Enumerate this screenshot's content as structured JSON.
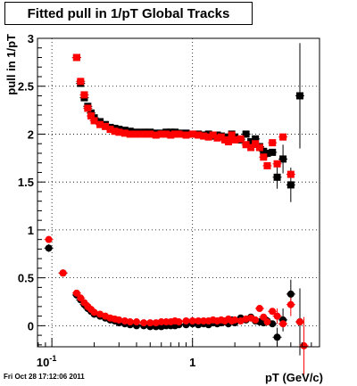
{
  "title": "Fitted pull in 1/pT  Global Tracks",
  "footer_timestamp": "Fri Oct 28 17:12:06 2011",
  "chart_data": {
    "type": "scatter",
    "title": "Fitted pull in 1/pT  Global Tracks",
    "xlabel": "pT (GeV/c)",
    "ylabel": "pull in 1/pT",
    "x_scale": "log",
    "xlim": [
      0.079,
      8.0
    ],
    "ylim": [
      -0.22,
      3.0
    ],
    "grid": true,
    "x_tick_labels": [
      {
        "x": 0.1,
        "label": "10",
        "sup": "-1"
      },
      {
        "x": 1,
        "label": "1",
        "sup": ""
      }
    ],
    "y_ticks": [
      0,
      0.5,
      1,
      1.5,
      2,
      2.5,
      3
    ],
    "y_tick_labels": [
      "0",
      "0.5",
      "1",
      "1.5",
      "2",
      "2.5",
      "3"
    ],
    "marker_colors": {
      "black": "#000000",
      "red": "#ff0000"
    },
    "series": [
      {
        "color": "black",
        "marker": "square",
        "points": [
          [
            0.15,
            2.8
          ],
          [
            0.16,
            2.53
          ],
          [
            0.17,
            2.38
          ],
          [
            0.18,
            2.29
          ],
          [
            0.19,
            2.22
          ],
          [
            0.2,
            2.17
          ],
          [
            0.22,
            2.13
          ],
          [
            0.24,
            2.1
          ],
          [
            0.26,
            2.07
          ],
          [
            0.28,
            2.06
          ],
          [
            0.3,
            2.05
          ],
          [
            0.33,
            2.04
          ],
          [
            0.36,
            2.03
          ],
          [
            0.4,
            2.02
          ],
          [
            0.45,
            2.02
          ],
          [
            0.5,
            2.02
          ],
          [
            0.55,
            2.01
          ],
          [
            0.6,
            2.01
          ],
          [
            0.65,
            2.02
          ],
          [
            0.7,
            2.02
          ],
          [
            0.75,
            2.02
          ],
          [
            0.8,
            2.01
          ],
          [
            0.9,
            2.01
          ],
          [
            1.0,
            2.0
          ],
          [
            1.1,
            2.0
          ],
          [
            1.2,
            1.99
          ],
          [
            1.3,
            2.0
          ],
          [
            1.4,
            1.98
          ],
          [
            1.5,
            1.99
          ],
          [
            1.6,
            1.98
          ],
          [
            1.7,
            1.96
          ],
          [
            1.8,
            1.97
          ],
          [
            1.9,
            2.0
          ],
          [
            2.0,
            1.97
          ],
          [
            2.2,
            1.94
          ],
          [
            2.4,
            2.0
          ],
          [
            2.6,
            1.92
          ],
          [
            2.8,
            1.95
          ],
          [
            3.0,
            1.87
          ],
          [
            3.2,
            1.82
          ],
          [
            3.4,
            1.8
          ],
          [
            3.7,
            1.81
          ],
          [
            4.0,
            1.55
          ],
          [
            4.4,
            1.74
          ],
          [
            5.0,
            1.47
          ],
          [
            5.8,
            2.4
          ]
        ],
        "errors": [
          [
            4.0,
            0.12
          ],
          [
            4.4,
            0.15
          ],
          [
            5.0,
            0.18
          ],
          [
            5.8,
            0.55
          ]
        ]
      },
      {
        "color": "red",
        "marker": "square",
        "points": [
          [
            0.15,
            2.8
          ],
          [
            0.16,
            2.55
          ],
          [
            0.17,
            2.41
          ],
          [
            0.18,
            2.27
          ],
          [
            0.19,
            2.19
          ],
          [
            0.2,
            2.14
          ],
          [
            0.22,
            2.1
          ],
          [
            0.24,
            2.08
          ],
          [
            0.26,
            2.05
          ],
          [
            0.28,
            2.03
          ],
          [
            0.3,
            2.02
          ],
          [
            0.33,
            2.01
          ],
          [
            0.36,
            2.0
          ],
          [
            0.4,
            2.0
          ],
          [
            0.45,
            2.0
          ],
          [
            0.5,
            2.0
          ],
          [
            0.55,
            1.99
          ],
          [
            0.6,
            2.0
          ],
          [
            0.65,
            2.0
          ],
          [
            0.7,
            1.99
          ],
          [
            0.75,
            2.0
          ],
          [
            0.8,
            2.0
          ],
          [
            0.9,
            1.99
          ],
          [
            1.0,
            2.0
          ],
          [
            1.1,
            1.99
          ],
          [
            1.2,
            1.98
          ],
          [
            1.3,
            1.97
          ],
          [
            1.4,
            1.99
          ],
          [
            1.5,
            1.96
          ],
          [
            1.6,
            1.97
          ],
          [
            1.7,
            1.94
          ],
          [
            1.8,
            1.92
          ],
          [
            1.9,
            1.99
          ],
          [
            2.0,
            1.94
          ],
          [
            2.2,
            1.95
          ],
          [
            2.4,
            1.89
          ],
          [
            2.6,
            1.86
          ],
          [
            2.8,
            1.9
          ],
          [
            3.0,
            1.86
          ],
          [
            3.2,
            1.76
          ],
          [
            3.4,
            1.67
          ],
          [
            3.7,
            1.91
          ],
          [
            4.0,
            1.69
          ],
          [
            4.4,
            1.97
          ],
          [
            5.0,
            1.58
          ]
        ],
        "errors": []
      },
      {
        "color": "black",
        "marker": "circle",
        "points": [
          [
            0.095,
            0.81
          ],
          [
            0.12,
            0.55
          ],
          [
            0.15,
            0.32
          ],
          [
            0.16,
            0.27
          ],
          [
            0.17,
            0.22
          ],
          [
            0.18,
            0.18
          ],
          [
            0.19,
            0.15
          ],
          [
            0.2,
            0.12
          ],
          [
            0.22,
            0.1
          ],
          [
            0.24,
            0.08
          ],
          [
            0.26,
            0.06
          ],
          [
            0.28,
            0.05
          ],
          [
            0.3,
            0.03
          ],
          [
            0.33,
            0.02
          ],
          [
            0.36,
            0.01
          ],
          [
            0.4,
            0.0
          ],
          [
            0.45,
            0.0
          ],
          [
            0.5,
            -0.01
          ],
          [
            0.55,
            -0.01
          ],
          [
            0.6,
            -0.01
          ],
          [
            0.65,
            0.0
          ],
          [
            0.7,
            0.0
          ],
          [
            0.75,
            0.0
          ],
          [
            0.8,
            0.01
          ],
          [
            0.9,
            0.01
          ],
          [
            1.0,
            0.02
          ],
          [
            1.1,
            0.01
          ],
          [
            1.2,
            0.02
          ],
          [
            1.3,
            0.01
          ],
          [
            1.4,
            0.03
          ],
          [
            1.5,
            0.02
          ],
          [
            1.6,
            0.03
          ],
          [
            1.7,
            0.04
          ],
          [
            1.8,
            0.02
          ],
          [
            1.9,
            0.06
          ],
          [
            2.0,
            0.03
          ],
          [
            2.2,
            0.08
          ],
          [
            2.4,
            0.06
          ],
          [
            2.6,
            0.09
          ],
          [
            2.8,
            0.05
          ],
          [
            3.0,
            0.04
          ],
          [
            3.2,
            0.03
          ],
          [
            3.4,
            0.05
          ],
          [
            3.7,
            0.02
          ],
          [
            4.0,
            -0.12
          ],
          [
            4.4,
            0.06
          ],
          [
            5.0,
            0.33
          ],
          [
            5.8,
            0.04
          ]
        ],
        "errors": [
          [
            0.095,
            0.04
          ],
          [
            4.0,
            0.1
          ],
          [
            4.4,
            0.12
          ],
          [
            5.0,
            0.15
          ],
          [
            5.8,
            0.35
          ]
        ]
      },
      {
        "color": "red",
        "marker": "circle",
        "points": [
          [
            0.095,
            0.9
          ],
          [
            0.12,
            0.55
          ],
          [
            0.15,
            0.34
          ],
          [
            0.16,
            0.29
          ],
          [
            0.17,
            0.24
          ],
          [
            0.18,
            0.2
          ],
          [
            0.19,
            0.17
          ],
          [
            0.2,
            0.14
          ],
          [
            0.22,
            0.12
          ],
          [
            0.24,
            0.1
          ],
          [
            0.26,
            0.08
          ],
          [
            0.28,
            0.07
          ],
          [
            0.3,
            0.06
          ],
          [
            0.33,
            0.05
          ],
          [
            0.36,
            0.04
          ],
          [
            0.4,
            0.04
          ],
          [
            0.45,
            0.03
          ],
          [
            0.5,
            0.03
          ],
          [
            0.55,
            0.03
          ],
          [
            0.6,
            0.04
          ],
          [
            0.65,
            0.04
          ],
          [
            0.7,
            0.04
          ],
          [
            0.75,
            0.05
          ],
          [
            0.8,
            0.04
          ],
          [
            0.9,
            0.05
          ],
          [
            1.0,
            0.05
          ],
          [
            1.1,
            0.05
          ],
          [
            1.2,
            0.05
          ],
          [
            1.3,
            0.05
          ],
          [
            1.4,
            0.06
          ],
          [
            1.5,
            0.05
          ],
          [
            1.6,
            0.06
          ],
          [
            1.7,
            0.05
          ],
          [
            1.8,
            0.07
          ],
          [
            1.9,
            0.05
          ],
          [
            2.0,
            0.06
          ],
          [
            2.2,
            0.05
          ],
          [
            2.4,
            0.07
          ],
          [
            2.6,
            0.08
          ],
          [
            2.8,
            0.06
          ],
          [
            3.0,
            0.18
          ],
          [
            3.2,
            0.09
          ],
          [
            3.4,
            0.04
          ],
          [
            3.7,
            0.15
          ],
          [
            4.0,
            0.1
          ],
          [
            4.4,
            0.02
          ],
          [
            5.0,
            0.22
          ],
          [
            5.8,
            0.04
          ],
          [
            6.2,
            -0.21
          ]
        ],
        "errors": [
          [
            4.0,
            0.08
          ],
          [
            5.0,
            0.12
          ],
          [
            6.2,
            0.3
          ]
        ]
      }
    ]
  }
}
